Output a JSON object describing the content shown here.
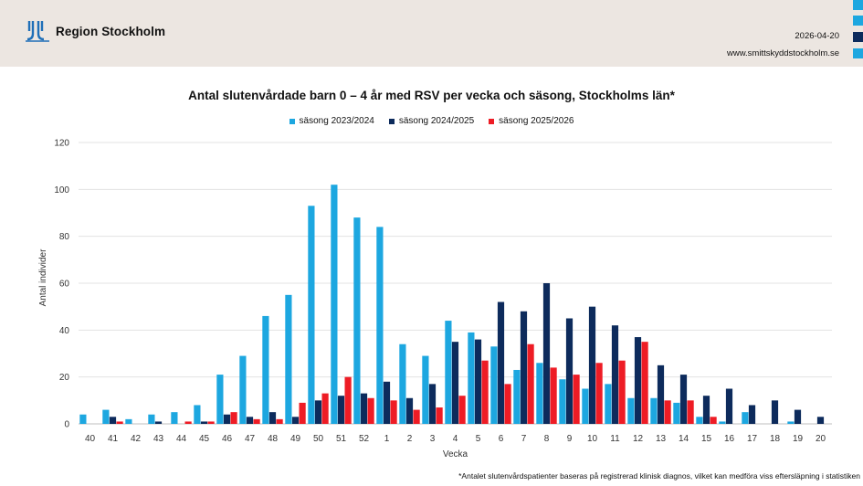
{
  "header": {
    "org_name": "Region Stockholm",
    "date": "2026-04-20",
    "url": "www.smittskyddstockholm.se",
    "corner_colors": [
      "#1da7e0",
      "#1da7e0",
      "#0d2b5c",
      "#1da7e0"
    ]
  },
  "footnote": "*Antalet slutenvårdspatienter baseras på registrerad klinisk diagnos, vilket kan medföra viss eftersläpning i statistiken",
  "chart_data": {
    "type": "bar",
    "title": "Antal slutenvårdade barn 0 – 4 år med RSV per vecka och säsong, Stockholms län*",
    "xlabel": "Vecka",
    "ylabel": "Antal individer",
    "ylim": [
      0,
      120
    ],
    "yticks": [
      0,
      20,
      40,
      60,
      80,
      100,
      120
    ],
    "grid": true,
    "legend_position": "top-center",
    "categories": [
      "40",
      "41",
      "42",
      "43",
      "44",
      "45",
      "46",
      "47",
      "48",
      "49",
      "50",
      "51",
      "52",
      "1",
      "2",
      "3",
      "4",
      "5",
      "6",
      "7",
      "8",
      "9",
      "10",
      "11",
      "12",
      "13",
      "14",
      "15",
      "16",
      "17",
      "18",
      "19",
      "20"
    ],
    "series": [
      {
        "name": "säsong 2023/2024",
        "color": "#1da7e0",
        "values": [
          4,
          6,
          2,
          4,
          5,
          8,
          21,
          29,
          46,
          55,
          93,
          102,
          88,
          84,
          34,
          29,
          44,
          39,
          33,
          23,
          26,
          19,
          15,
          17,
          11,
          11,
          9,
          3,
          1,
          5,
          0,
          1,
          0
        ]
      },
      {
        "name": "säsong 2024/2025",
        "color": "#0d2b5c",
        "values": [
          0,
          3,
          0,
          1,
          0,
          1,
          4,
          3,
          5,
          3,
          10,
          12,
          13,
          18,
          11,
          17,
          35,
          36,
          52,
          48,
          60,
          45,
          50,
          42,
          37,
          25,
          21,
          12,
          15,
          8,
          10,
          6,
          3
        ]
      },
      {
        "name": "säsong 2025/2026",
        "color": "#ee1c25",
        "values": [
          0,
          1,
          0,
          0,
          1,
          1,
          5,
          2,
          2,
          9,
          13,
          20,
          11,
          10,
          6,
          7,
          12,
          27,
          17,
          34,
          24,
          21,
          26,
          27,
          35,
          10,
          10,
          3,
          null,
          null,
          null,
          null,
          null
        ]
      }
    ]
  }
}
